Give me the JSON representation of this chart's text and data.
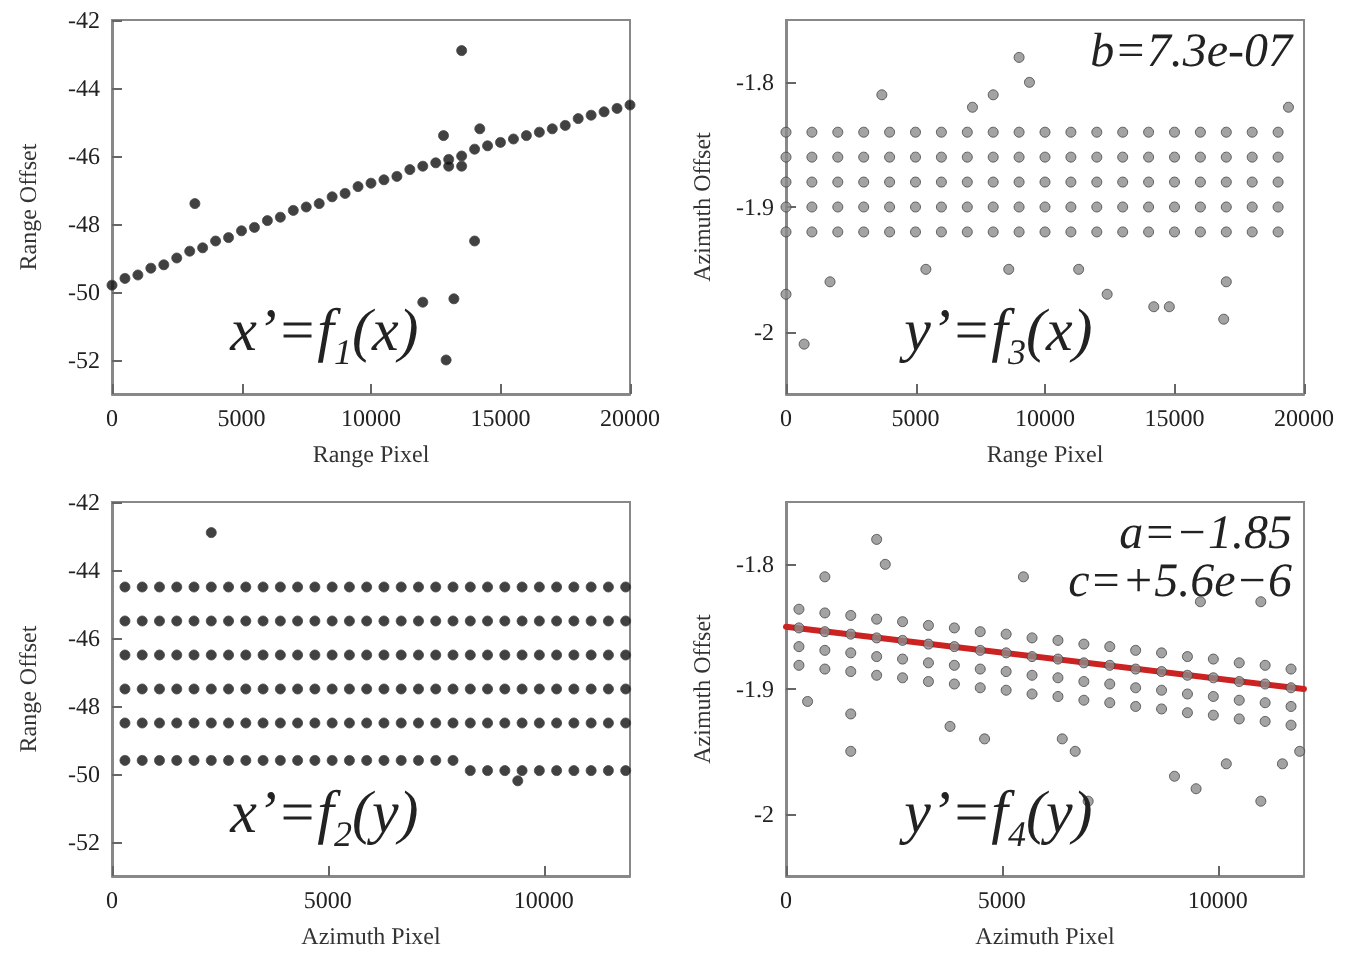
{
  "chart_data": [
    {
      "type": "scatter",
      "xlabel": "Range Pixel",
      "ylabel": "Range Offset",
      "annotations": [
        "x’=f$_{1}$(x)"
      ],
      "marker": "circle",
      "xlim": [
        0,
        20000
      ],
      "ylim": [
        -53,
        -42
      ],
      "xticks": [
        0,
        5000,
        10000,
        15000,
        20000
      ],
      "yticks": [
        -52,
        -50,
        -48,
        -46,
        -44,
        -42
      ],
      "x": [
        0,
        500,
        1000,
        1500,
        2000,
        2500,
        3000,
        3500,
        4000,
        4500,
        5000,
        5500,
        6000,
        6500,
        7000,
        7500,
        8000,
        8500,
        9000,
        9500,
        10000,
        10500,
        11000,
        11500,
        12000,
        12500,
        13000,
        13500,
        14000,
        14500,
        15000,
        15500,
        16000,
        16500,
        17000,
        17500,
        18000,
        18500,
        19000,
        19500,
        20000
      ],
      "series": [
        {
          "color": "#111111",
          "values": [
            -49.8,
            -49.6,
            -49.5,
            -49.3,
            -49.2,
            -49.0,
            -48.8,
            -48.7,
            -48.5,
            -48.4,
            -48.2,
            -48.1,
            -47.9,
            -47.8,
            -47.6,
            -47.5,
            -47.4,
            -47.2,
            -47.1,
            -46.9,
            -46.8,
            -46.7,
            -46.6,
            -46.4,
            -46.3,
            -46.2,
            -46.1,
            -46.0,
            -45.8,
            -45.7,
            -45.6,
            -45.5,
            -45.4,
            -45.3,
            -45.2,
            -45.1,
            -44.9,
            -44.8,
            -44.7,
            -44.6,
            -44.5
          ]
        },
        {
          "color": "#111111",
          "x": [
            3200,
            12800,
            13500,
            14200,
            13000,
            13500,
            14000,
            12000,
            13200,
            12900
          ],
          "values": [
            -47.4,
            -45.4,
            -42.9,
            -45.2,
            -46.3,
            -46.3,
            -48.5,
            -50.3,
            -50.2,
            -52
          ]
        }
      ]
    },
    {
      "type": "scatter",
      "xlabel": "Range Pixel",
      "ylabel": "Azimuth Offset",
      "annotations": [
        "b=7.3e-07",
        "y’=f$_{3}$(x)"
      ],
      "marker": "circle",
      "xlim": [
        0,
        20000
      ],
      "ylim": [
        -2.05,
        -1.75
      ],
      "xticks": [
        0,
        5000,
        10000,
        15000,
        20000
      ],
      "yticks": [
        -2,
        -1.9,
        -1.8
      ],
      "x": [
        0,
        1000,
        2000,
        3000,
        4000,
        5000,
        6000,
        7000,
        8000,
        9000,
        10000,
        11000,
        12000,
        13000,
        14000,
        15000,
        16000,
        17000,
        18000,
        19000
      ],
      "series": [
        {
          "color": "#8c8c8c",
          "values": [
            -1.84,
            -1.84,
            -1.84,
            -1.84,
            -1.84,
            -1.84,
            -1.84,
            -1.84,
            -1.84,
            -1.84,
            -1.84,
            -1.84,
            -1.84,
            -1.84,
            -1.84,
            -1.84,
            -1.84,
            -1.84,
            -1.84,
            -1.84
          ]
        },
        {
          "color": "#8c8c8c",
          "values": [
            -1.86,
            -1.86,
            -1.86,
            -1.86,
            -1.86,
            -1.86,
            -1.86,
            -1.86,
            -1.86,
            -1.86,
            -1.86,
            -1.86,
            -1.86,
            -1.86,
            -1.86,
            -1.86,
            -1.86,
            -1.86,
            -1.86,
            -1.86
          ]
        },
        {
          "color": "#8c8c8c",
          "values": [
            -1.88,
            -1.88,
            -1.88,
            -1.88,
            -1.88,
            -1.88,
            -1.88,
            -1.88,
            -1.88,
            -1.88,
            -1.88,
            -1.88,
            -1.88,
            -1.88,
            -1.88,
            -1.88,
            -1.88,
            -1.88,
            -1.88,
            -1.88
          ]
        },
        {
          "color": "#8c8c8c",
          "values": [
            -1.9,
            -1.9,
            -1.9,
            -1.9,
            -1.9,
            -1.9,
            -1.9,
            -1.9,
            -1.9,
            -1.9,
            -1.9,
            -1.9,
            -1.9,
            -1.9,
            -1.9,
            -1.9,
            -1.9,
            -1.9,
            -1.9,
            -1.9
          ]
        },
        {
          "color": "#8c8c8c",
          "values": [
            -1.92,
            -1.92,
            -1.92,
            -1.92,
            -1.92,
            -1.92,
            -1.92,
            -1.92,
            -1.92,
            -1.92,
            -1.92,
            -1.92,
            -1.92,
            -1.92,
            -1.92,
            -1.92,
            -1.92,
            -1.92,
            -1.92,
            -1.92
          ]
        },
        {
          "color": "#8c8c8c",
          "x": [
            3700,
            9000,
            9400,
            7200,
            8000,
            19400,
            5400,
            8600,
            11300,
            12400,
            14200,
            14800,
            17000,
            16900,
            700,
            1700,
            0
          ],
          "values": [
            -1.81,
            -1.78,
            -1.8,
            -1.82,
            -1.81,
            -1.82,
            -1.95,
            -1.95,
            -1.95,
            -1.97,
            -1.98,
            -1.98,
            -1.96,
            -1.99,
            -2.01,
            -1.96,
            -1.97
          ]
        }
      ]
    },
    {
      "type": "scatter",
      "xlabel": "Azimuth Pixel",
      "ylabel": "Range Offset",
      "annotations": [
        "x’=f$_{2}$(y)"
      ],
      "marker": "circle",
      "xlim": [
        0,
        12000
      ],
      "ylim": [
        -53,
        -42
      ],
      "xticks": [
        0,
        5000,
        10000
      ],
      "yticks": [
        -52,
        -50,
        -48,
        -46,
        -44,
        -42
      ],
      "x": [
        300,
        700,
        1100,
        1500,
        1900,
        2300,
        2700,
        3100,
        3500,
        3900,
        4300,
        4700,
        5100,
        5500,
        5900,
        6300,
        6700,
        7100,
        7500,
        7900,
        8300,
        8700,
        9100,
        9500,
        9900,
        10300,
        10700,
        11100,
        11500,
        11900
      ],
      "series": [
        {
          "color": "#111111",
          "values": [
            -44.5,
            -44.5,
            -44.5,
            -44.5,
            -44.5,
            -44.5,
            -44.5,
            -44.5,
            -44.5,
            -44.5,
            -44.5,
            -44.5,
            -44.5,
            -44.5,
            -44.5,
            -44.5,
            -44.5,
            -44.5,
            -44.5,
            -44.5,
            -44.5,
            -44.5,
            -44.5,
            -44.5,
            -44.5,
            -44.5,
            -44.5,
            -44.5,
            -44.5,
            -44.5
          ]
        },
        {
          "color": "#111111",
          "values": [
            -45.5,
            -45.5,
            -45.5,
            -45.5,
            -45.5,
            -45.5,
            -45.5,
            -45.5,
            -45.5,
            -45.5,
            -45.5,
            -45.5,
            -45.5,
            -45.5,
            -45.5,
            -45.5,
            -45.5,
            -45.5,
            -45.5,
            -45.5,
            -45.5,
            -45.5,
            -45.5,
            -45.5,
            -45.5,
            -45.5,
            -45.5,
            -45.5,
            -45.5,
            -45.5
          ]
        },
        {
          "color": "#111111",
          "values": [
            -46.5,
            -46.5,
            -46.5,
            -46.5,
            -46.5,
            -46.5,
            -46.5,
            -46.5,
            -46.5,
            -46.5,
            -46.5,
            -46.5,
            -46.5,
            -46.5,
            -46.5,
            -46.5,
            -46.5,
            -46.5,
            -46.5,
            -46.5,
            -46.5,
            -46.5,
            -46.5,
            -46.5,
            -46.5,
            -46.5,
            -46.5,
            -46.5,
            -46.5,
            -46.5
          ]
        },
        {
          "color": "#111111",
          "values": [
            -47.5,
            -47.5,
            -47.5,
            -47.5,
            -47.5,
            -47.5,
            -47.5,
            -47.5,
            -47.5,
            -47.5,
            -47.5,
            -47.5,
            -47.5,
            -47.5,
            -47.5,
            -47.5,
            -47.5,
            -47.5,
            -47.5,
            -47.5,
            -47.5,
            -47.5,
            -47.5,
            -47.5,
            -47.5,
            -47.5,
            -47.5,
            -47.5,
            -47.5,
            -47.5
          ]
        },
        {
          "color": "#111111",
          "values": [
            -48.5,
            -48.5,
            -48.5,
            -48.5,
            -48.5,
            -48.5,
            -48.5,
            -48.5,
            -48.5,
            -48.5,
            -48.5,
            -48.5,
            -48.5,
            -48.5,
            -48.5,
            -48.5,
            -48.5,
            -48.5,
            -48.5,
            -48.5,
            -48.5,
            -48.5,
            -48.5,
            -48.5,
            -48.5,
            -48.5,
            -48.5,
            -48.5,
            -48.5,
            -48.5
          ]
        },
        {
          "color": "#111111",
          "values": [
            -49.6,
            -49.6,
            -49.6,
            -49.6,
            -49.6,
            -49.6,
            -49.6,
            -49.6,
            -49.6,
            -49.6,
            -49.6,
            -49.6,
            -49.6,
            -49.6,
            -49.6,
            -49.6,
            -49.6,
            -49.6,
            -49.6,
            -49.6,
            -49.9,
            -49.9,
            -49.9,
            -49.9,
            -49.9,
            -49.9,
            -49.9,
            -49.9,
            -49.9,
            -49.9
          ]
        },
        {
          "color": "#111111",
          "x": [
            2300,
            9400
          ],
          "values": [
            -42.9,
            -50.2
          ]
        }
      ]
    },
    {
      "type": "scatter",
      "xlabel": "Azimuth Pixel",
      "ylabel": "Azimuth Offset",
      "annotations": [
        "a=−1.85",
        "c=+5.6e−6",
        "y’=f$_{4}$(y)"
      ],
      "marker": "circle",
      "xlim": [
        0,
        12000
      ],
      "ylim": [
        -2.05,
        -1.75
      ],
      "xticks": [
        0,
        5000,
        10000
      ],
      "yticks": [
        -2,
        -1.9,
        -1.8
      ],
      "x": [
        300,
        900,
        1500,
        2100,
        2700,
        3300,
        3900,
        4500,
        5100,
        5700,
        6300,
        6900,
        7500,
        8100,
        8700,
        9300,
        9900,
        10500,
        11100,
        11700
      ],
      "series": [
        {
          "color": "#8c8c8c",
          "values": [
            -1.836,
            -1.839,
            -1.841,
            -1.844,
            -1.846,
            -1.849,
            -1.851,
            -1.854,
            -1.856,
            -1.859,
            -1.861,
            -1.864,
            -1.866,
            -1.869,
            -1.871,
            -1.874,
            -1.876,
            -1.879,
            -1.881,
            -1.884
          ]
        },
        {
          "color": "#8c8c8c",
          "values": [
            -1.851,
            -1.854,
            -1.856,
            -1.859,
            -1.861,
            -1.864,
            -1.866,
            -1.869,
            -1.871,
            -1.874,
            -1.876,
            -1.879,
            -1.881,
            -1.884,
            -1.886,
            -1.889,
            -1.891,
            -1.894,
            -1.896,
            -1.899
          ]
        },
        {
          "color": "#8c8c8c",
          "values": [
            -1.866,
            -1.869,
            -1.871,
            -1.874,
            -1.876,
            -1.879,
            -1.881,
            -1.884,
            -1.886,
            -1.889,
            -1.891,
            -1.894,
            -1.896,
            -1.899,
            -1.901,
            -1.904,
            -1.906,
            -1.909,
            -1.911,
            -1.914
          ]
        },
        {
          "color": "#8c8c8c",
          "values": [
            -1.881,
            -1.884,
            -1.886,
            -1.889,
            -1.891,
            -1.894,
            -1.896,
            -1.899,
            -1.901,
            -1.904,
            -1.906,
            -1.909,
            -1.911,
            -1.914,
            -1.916,
            -1.919,
            -1.921,
            -1.924,
            -1.926,
            -1.929
          ]
        },
        {
          "color": "#8c8c8c",
          "x": [
            2100,
            2300,
            900,
            5500,
            9600,
            11000,
            1500,
            1500,
            3800,
            4600,
            6400,
            6700,
            7000,
            9000,
            9500,
            10200,
            11000,
            11500,
            11900,
            500
          ],
          "values": [
            -1.78,
            -1.8,
            -1.81,
            -1.81,
            -1.83,
            -1.83,
            -1.95,
            -1.92,
            -1.93,
            -1.94,
            -1.94,
            -1.95,
            -1.99,
            -1.97,
            -1.98,
            -1.96,
            -1.99,
            -1.96,
            -1.95,
            -1.91
          ]
        },
        {
          "type": "line",
          "color": "#cc2222",
          "marker": "none",
          "line_style": "solid",
          "x": [
            0,
            12000
          ],
          "values": [
            -1.85,
            -1.9
          ]
        }
      ]
    }
  ]
}
